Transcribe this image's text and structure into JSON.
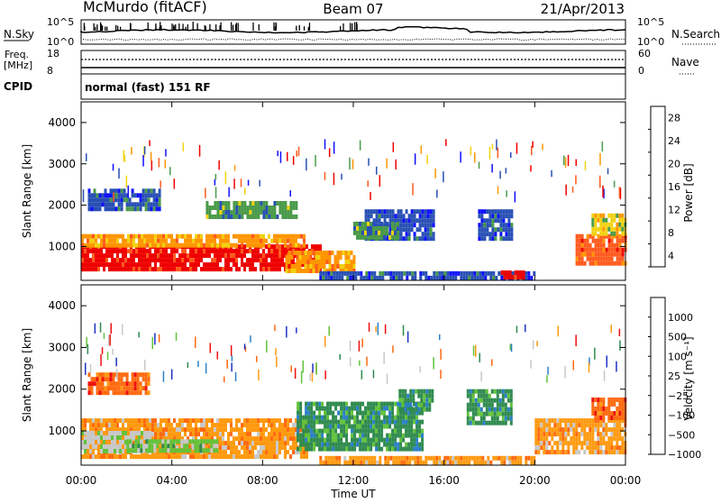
{
  "header": {
    "station": "McMurdo  (fitACF)",
    "beam": "Beam 07",
    "date": "21/Apr/2013"
  },
  "noise_panel": {
    "left_label": "N.Sky",
    "right_label": "N.Search",
    "left_ticks": [
      "10^5",
      "10^0"
    ],
    "right_ticks": [
      "10^5",
      "10^0"
    ]
  },
  "freq_panel": {
    "left_label_line1": "Freq.",
    "left_label_line2": "[MHz]",
    "left_ticks": [
      "18",
      "8"
    ],
    "right_ticks": [
      "60",
      "0"
    ],
    "right_label": "Nave"
  },
  "cpid_panel": {
    "label": "CPID",
    "text": "normal (fast) 151 RF"
  },
  "chart_data": [
    {
      "type": "heatmap",
      "name": "power",
      "ylabel": "Slant Range [km]",
      "yticks": [
        1000,
        2000,
        3000,
        4000
      ],
      "ylim": [
        180,
        4500
      ],
      "xlim": [
        0,
        24
      ],
      "colorbar": {
        "label": "Power [dB]",
        "ticks": [
          "28",
          "24",
          "20",
          "16",
          "12",
          "8",
          "4"
        ],
        "colors": [
          "#ee0000",
          "#ff5a1e",
          "#ff9600",
          "#f2d210",
          "#4a9a4a",
          "#2850b4",
          "#1010ff"
        ]
      },
      "regions": [
        {
          "t0": 0.0,
          "t1": 10.5,
          "r0": 420,
          "r1": 1050,
          "level": 0
        },
        {
          "t0": 0.0,
          "t1": 10.0,
          "r0": 1050,
          "r1": 1300,
          "level": 2
        },
        {
          "t0": 9.0,
          "t1": 12.0,
          "r0": 450,
          "r1": 900,
          "level": 2
        },
        {
          "t0": 12.5,
          "t1": 15.5,
          "r0": 1150,
          "r1": 1900,
          "level": 5
        },
        {
          "t0": 12.0,
          "t1": 14.0,
          "r0": 1200,
          "r1": 1600,
          "level": 4
        },
        {
          "t0": 0.3,
          "t1": 3.5,
          "r0": 1900,
          "r1": 2400,
          "level": 5
        },
        {
          "t0": 17.5,
          "t1": 19.0,
          "r0": 1200,
          "r1": 1900,
          "level": 5
        },
        {
          "t0": 21.8,
          "t1": 24.0,
          "r0": 600,
          "r1": 1300,
          "level": 1
        },
        {
          "t0": 22.5,
          "t1": 24.0,
          "r0": 1300,
          "r1": 1800,
          "level": 3
        },
        {
          "t0": 10.5,
          "t1": 20.0,
          "r0": 250,
          "r1": 400,
          "level": 5
        },
        {
          "t0": 18.5,
          "t1": 19.5,
          "r0": 250,
          "r1": 420,
          "level": 0
        },
        {
          "t0": 5.5,
          "t1": 9.5,
          "r0": 1700,
          "r1": 2100,
          "level": 4
        }
      ]
    },
    {
      "type": "heatmap",
      "name": "velocity",
      "ylabel": "Slant Range [km]",
      "xlabel": "Time UT",
      "xticks": [
        "00:00",
        "04:00",
        "08:00",
        "12:00",
        "16:00",
        "20:00",
        "00:00"
      ],
      "yticks": [
        1000,
        2000,
        3000,
        4000
      ],
      "ylim": [
        180,
        4500
      ],
      "xlim": [
        0,
        24
      ],
      "colorbar": {
        "label": "Velocity [m s⁻¹]",
        "ticks": [
          "1000",
          "500",
          "100",
          "25",
          "−25",
          "−100",
          "−500",
          "−1000"
        ],
        "colors": [
          "#1e32c8",
          "#2a7fc8",
          "#2f8a4f",
          "#62c23a",
          "#c8c8c8",
          "#ff9a10",
          "#ff6a10",
          "#ee1010"
        ]
      },
      "regions": [
        {
          "t0": 0.0,
          "t1": 10.0,
          "r0": 400,
          "r1": 1300,
          "level": 5
        },
        {
          "t0": 0.0,
          "t1": 3.0,
          "r0": 500,
          "r1": 1000,
          "level": 4
        },
        {
          "t0": 2.0,
          "t1": 6.0,
          "r0": 500,
          "r1": 800,
          "level": 3
        },
        {
          "t0": 9.5,
          "t1": 15.0,
          "r0": 600,
          "r1": 1700,
          "level": 2
        },
        {
          "t0": 14.0,
          "t1": 15.5,
          "r0": 1500,
          "r1": 2000,
          "level": 2
        },
        {
          "t0": 0.3,
          "t1": 3.0,
          "r0": 1900,
          "r1": 2400,
          "level": 6
        },
        {
          "t0": 17.0,
          "t1": 19.0,
          "r0": 1200,
          "r1": 2000,
          "level": 2
        },
        {
          "t0": 20.0,
          "t1": 24.0,
          "r0": 500,
          "r1": 1300,
          "level": 5
        },
        {
          "t0": 22.5,
          "t1": 24.0,
          "r0": 1300,
          "r1": 1800,
          "level": 6
        },
        {
          "t0": 10.5,
          "t1": 20.0,
          "r0": 250,
          "r1": 400,
          "level": 5
        }
      ]
    }
  ]
}
